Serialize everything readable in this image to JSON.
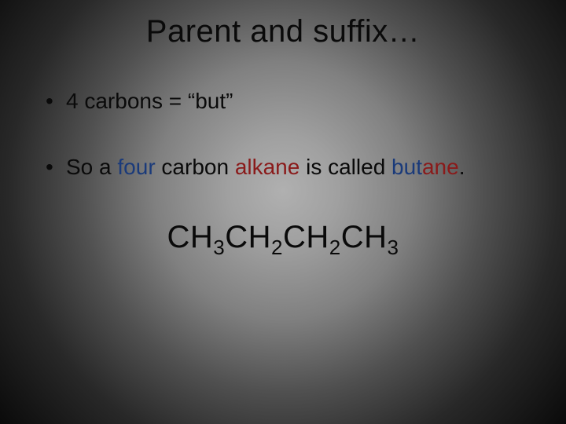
{
  "slide": {
    "background": {
      "type": "radial-gradient",
      "center_color": "#b0b0b0",
      "edge_color": "#0a0a0a"
    },
    "font_family": "Comic Sans MS",
    "title": {
      "text": "Parent and suffix…",
      "fontsize": 40,
      "color": "#0a0a0a",
      "align": "center"
    },
    "bullets": [
      {
        "full_text": "4 carbons = “but”",
        "runs": [
          {
            "text": "4 carbons = “but”",
            "color": "#0a0a0a"
          }
        ]
      },
      {
        "full_text": "So a four carbon alkane is called butane.",
        "runs": [
          {
            "text": "So a ",
            "color": "#0a0a0a"
          },
          {
            "text": "four",
            "color": "#1a3a7a"
          },
          {
            "text": " carbon ",
            "color": "#0a0a0a"
          },
          {
            "text": "alkane",
            "color": "#8a1a1a"
          },
          {
            "text": " is called ",
            "color": "#0a0a0a"
          },
          {
            "text": "but",
            "color": "#1a3a7a"
          },
          {
            "text": "ane",
            "color": "#8a1a1a"
          },
          {
            "text": ".",
            "color": "#0a0a0a"
          }
        ]
      }
    ],
    "bullet_fontsize": 28,
    "formula": {
      "segments": [
        {
          "text": "CH",
          "sub": false
        },
        {
          "text": "3",
          "sub": true
        },
        {
          "text": "CH",
          "sub": false
        },
        {
          "text": "2",
          "sub": true
        },
        {
          "text": "CH",
          "sub": false
        },
        {
          "text": "2",
          "sub": true
        },
        {
          "text": "CH",
          "sub": false
        },
        {
          "text": "3",
          "sub": true
        }
      ],
      "plain": "CH3CH2CH2CH3",
      "fontsize": 40,
      "color": "#0a0a0a",
      "align": "center"
    }
  }
}
